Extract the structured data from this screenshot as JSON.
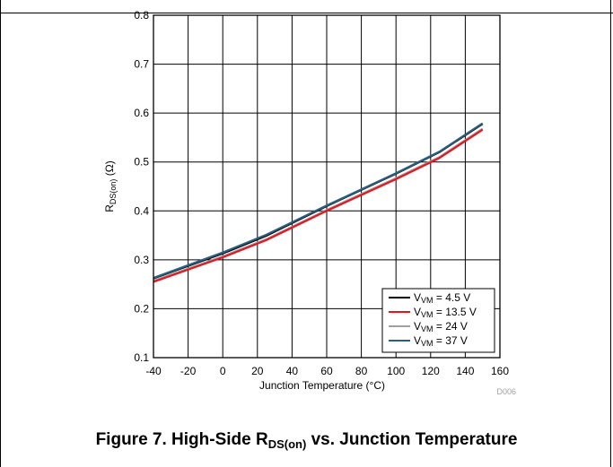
{
  "chart_data": {
    "type": "line",
    "xlabel": "Junction Temperature (°C)",
    "ylabel": {
      "main": "R",
      "sub": "DS(on)",
      "unit": " (Ω)"
    },
    "xlim": [
      -40,
      160
    ],
    "ylim": [
      0.1,
      0.8
    ],
    "xticks": [
      -40,
      -20,
      0,
      20,
      40,
      60,
      80,
      100,
      120,
      140,
      160
    ],
    "yticks": [
      0.1,
      0.2,
      0.3,
      0.4,
      0.5,
      0.6,
      0.7,
      0.8
    ],
    "ytick_labels": [
      "0.1",
      "0.2",
      "0.3",
      "0.4",
      "0.5",
      "0.6",
      "0.7",
      "0.8"
    ],
    "grid": true,
    "legend_position": "bottom-right",
    "watermark": "D006",
    "series": [
      {
        "name": "V_VM = 4.5 V",
        "label_main": "V",
        "label_sub": "VM",
        "label_rest": " = 4.5 V",
        "color": "#000000",
        "x": [
          -40,
          0,
          25,
          60,
          100,
          125,
          150
        ],
        "y": [
          0.262,
          0.313,
          0.349,
          0.41,
          0.476,
          0.52,
          0.578
        ]
      },
      {
        "name": "V_VM = 13.5 V",
        "label_main": "V",
        "label_sub": "VM",
        "label_rest": " = 13.5 V",
        "color": "#e8141e",
        "x": [
          -40,
          0,
          25,
          60,
          100,
          125,
          150
        ],
        "y": [
          0.255,
          0.305,
          0.34,
          0.4,
          0.465,
          0.508,
          0.566
        ]
      },
      {
        "name": "V_VM = 24 V",
        "label_main": "V",
        "label_sub": "VM",
        "label_rest": " = 24 V",
        "color": "#a0a0a0",
        "x": [
          -40,
          0,
          25,
          60,
          100,
          125,
          150
        ],
        "y": [
          0.257,
          0.307,
          0.342,
          0.402,
          0.467,
          0.51,
          0.568
        ]
      },
      {
        "name": "V_VM = 37 V",
        "label_main": "V",
        "label_sub": "VM",
        "label_rest": " = 37 V",
        "color": "#2a5f80",
        "x": [
          -40,
          0,
          25,
          60,
          100,
          125,
          150
        ],
        "y": [
          0.263,
          0.315,
          0.351,
          0.411,
          0.477,
          0.521,
          0.579
        ]
      }
    ]
  },
  "caption": {
    "prefix": "Figure 7. High-Side R",
    "sub": "DS(on)",
    "suffix": " vs. Junction Temperature"
  }
}
